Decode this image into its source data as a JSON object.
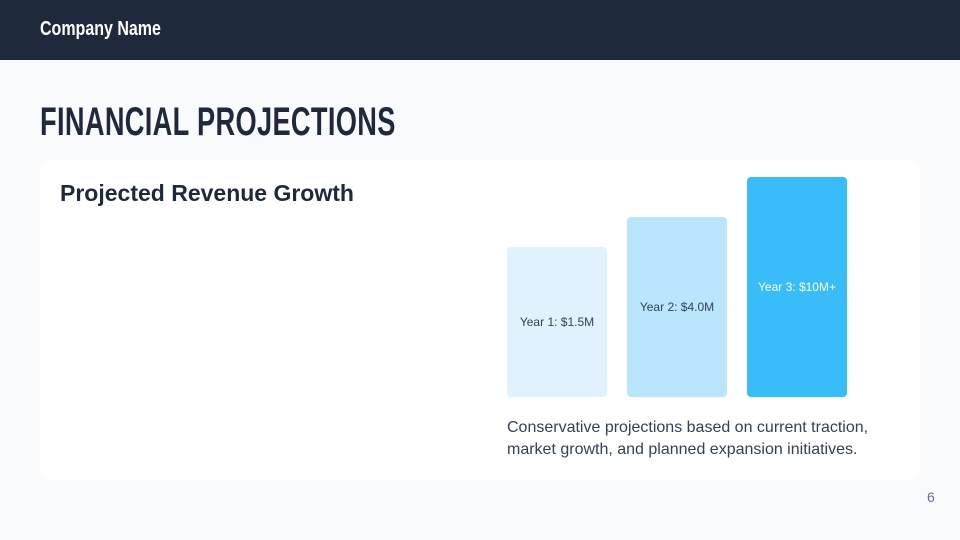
{
  "header": {
    "company": "Company Name"
  },
  "slide": {
    "title": "FINANCIAL PROJECTIONS",
    "page_number": "6"
  },
  "card": {
    "title": "Projected Revenue Growth",
    "bars": [
      {
        "label": "Year 1: $1.5M"
      },
      {
        "label": "Year 2: $4.0M"
      },
      {
        "label": "Year 3: $10M+"
      }
    ],
    "description": "Conservative projections based on current traction, market growth, and planned expansion initiatives."
  }
}
